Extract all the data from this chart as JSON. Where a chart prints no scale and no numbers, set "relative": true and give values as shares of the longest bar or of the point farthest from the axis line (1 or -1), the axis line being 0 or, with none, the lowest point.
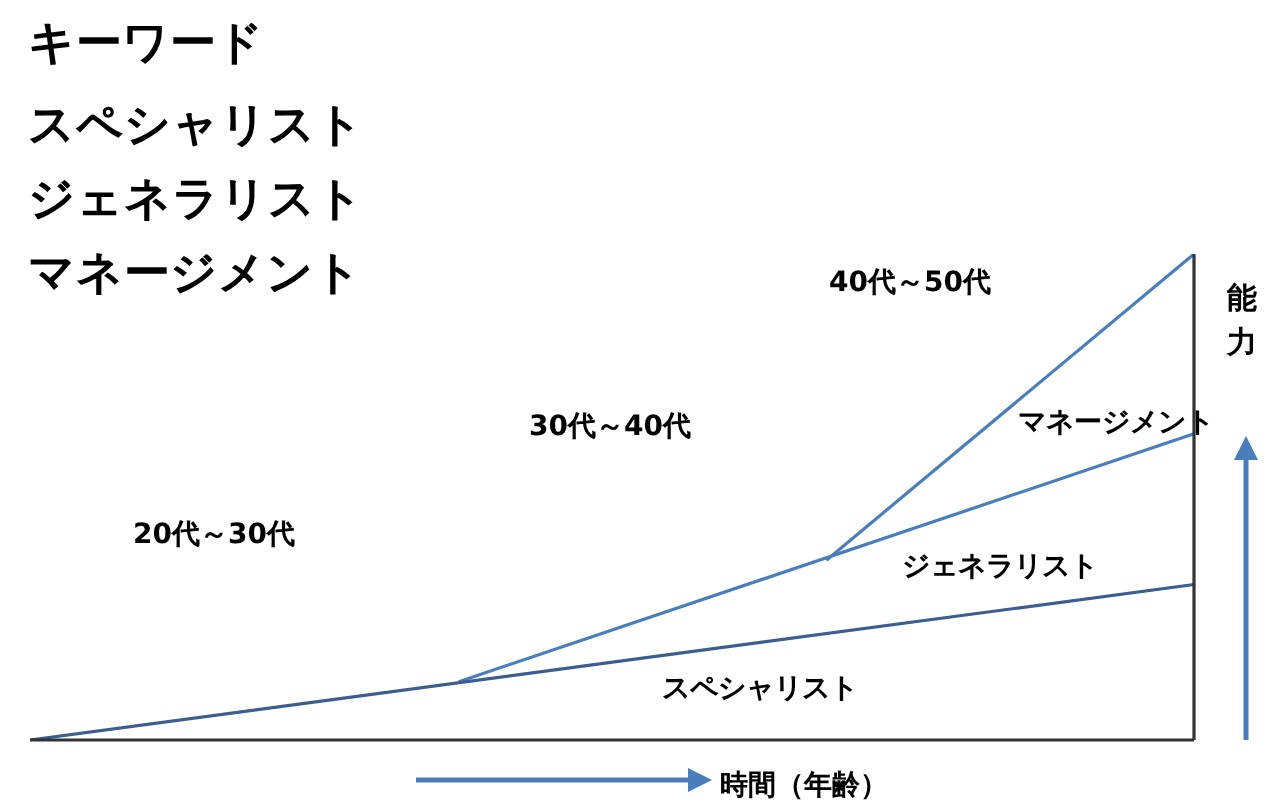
{
  "chart_data": {
    "type": "line",
    "relative": true,
    "title": "キーワード",
    "xlabel": "時間（年齢）",
    "ylabel": "能力",
    "categories": [
      null,
      null,
      null,
      null,
      null,
      null,
      null,
      null,
      null,
      null,
      null,
      null,
      null,
      null,
      null,
      null,
      null,
      null,
      null,
      null
    ],
    "series": [
      {
        "name": "スペシャリスト",
        "color": "#3b5d91",
        "values": [
          0,
          null,
          null,
          null,
          null,
          null,
          null,
          null,
          null,
          null,
          null,
          null,
          null,
          null,
          null,
          null,
          null,
          null,
          null,
          0.32
        ]
      },
      {
        "name": "ジェネラリスト",
        "color": "#4a7ebb",
        "values": [
          null,
          null,
          null,
          null,
          null,
          null,
          null,
          0.12,
          null,
          null,
          null,
          null,
          null,
          null,
          null,
          null,
          null,
          null,
          null,
          0.63
        ]
      },
      {
        "name": "マネージメント",
        "color": "#4a7ebb",
        "values": [
          null,
          null,
          null,
          null,
          null,
          null,
          null,
          null,
          null,
          null,
          null,
          null,
          null,
          0.37,
          null,
          null,
          null,
          null,
          null,
          1
        ]
      }
    ],
    "annotations": [
      "20代～30代",
      "30代～40代",
      "40代～50代",
      "スペシャリスト",
      "ジェネラリスト",
      "マネージメント"
    ],
    "legend": false,
    "marker": "none",
    "line_style": "solid"
  }
}
